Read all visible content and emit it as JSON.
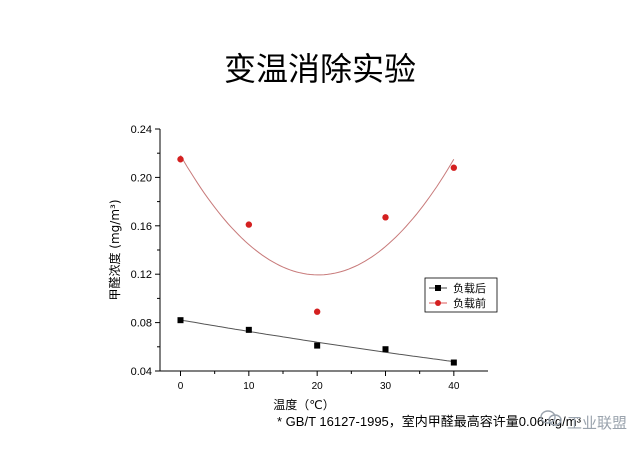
{
  "title": "变温消除实验",
  "footnote": "* GB/T 16127-1995，室内甲醛最高容许量0.06mg/m³",
  "watermark": "工业联盟",
  "colors": {
    "series_after": "#000000",
    "series_before": "#d42020",
    "fit_before": "#c87a7a",
    "fit_after": "#555555"
  },
  "chart_data": {
    "type": "scatter",
    "xlabel": "温度（℃）",
    "ylabel": "甲醛浓度 (mg/m³)",
    "xlim": [
      -3,
      45
    ],
    "ylim": [
      0.04,
      0.24
    ],
    "xticks": [
      0,
      10,
      20,
      30,
      40
    ],
    "yticks": [
      0.04,
      0.08,
      0.12,
      0.16,
      0.2,
      0.24
    ],
    "legend_position": "right",
    "series": [
      {
        "name": "负载后",
        "marker": "square",
        "x": [
          0,
          10,
          20,
          30,
          40
        ],
        "y": [
          0.082,
          0.074,
          0.061,
          0.058,
          0.047
        ]
      },
      {
        "name": "负载前",
        "marker": "circle",
        "x": [
          0,
          10,
          20,
          30,
          40
        ],
        "y": [
          0.215,
          0.161,
          0.089,
          0.167,
          0.208
        ]
      }
    ]
  }
}
